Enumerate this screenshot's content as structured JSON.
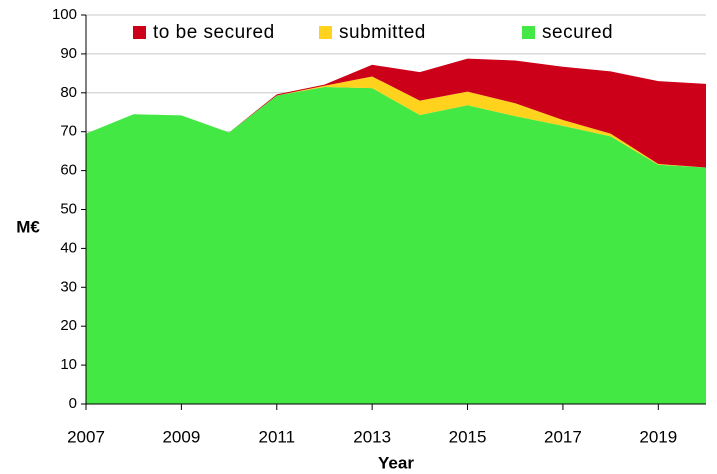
{
  "chart_data": {
    "type": "stacked_area",
    "x_label": "Year",
    "y_label": "M€",
    "x": [
      2007,
      2008,
      2009,
      2010,
      2011,
      2012,
      2013,
      2014,
      2015,
      2016,
      2017,
      2018,
      2019,
      2020
    ],
    "series": [
      {
        "name": "to be secured",
        "color": "#cc0018",
        "values": [
          0,
          0,
          0,
          0,
          0.3,
          0.3,
          3,
          7.3,
          8.5,
          11,
          13.7,
          16,
          21.3,
          21.5
        ]
      },
      {
        "name": "submitted",
        "color": "#ffd21e",
        "values": [
          0,
          0,
          0,
          0,
          0,
          0.3,
          3,
          3.7,
          3.5,
          3.3,
          1.5,
          0.7,
          0.2,
          0
        ]
      },
      {
        "name": "secured",
        "color": "#44e844",
        "values": [
          69.5,
          74.5,
          74.2,
          69.8,
          79.3,
          81.5,
          81.2,
          74.3,
          76.8,
          74,
          71.5,
          68.8,
          61.5,
          60.8
        ]
      }
    ],
    "xlim": [
      2007,
      2020
    ],
    "xticks": [
      2007,
      2009,
      2011,
      2013,
      2015,
      2017,
      2019
    ],
    "ylim": [
      0,
      100
    ],
    "yticks": [
      0,
      10,
      20,
      30,
      40,
      50,
      60,
      70,
      80,
      90,
      100
    ],
    "grid": true,
    "legend": "top"
  }
}
